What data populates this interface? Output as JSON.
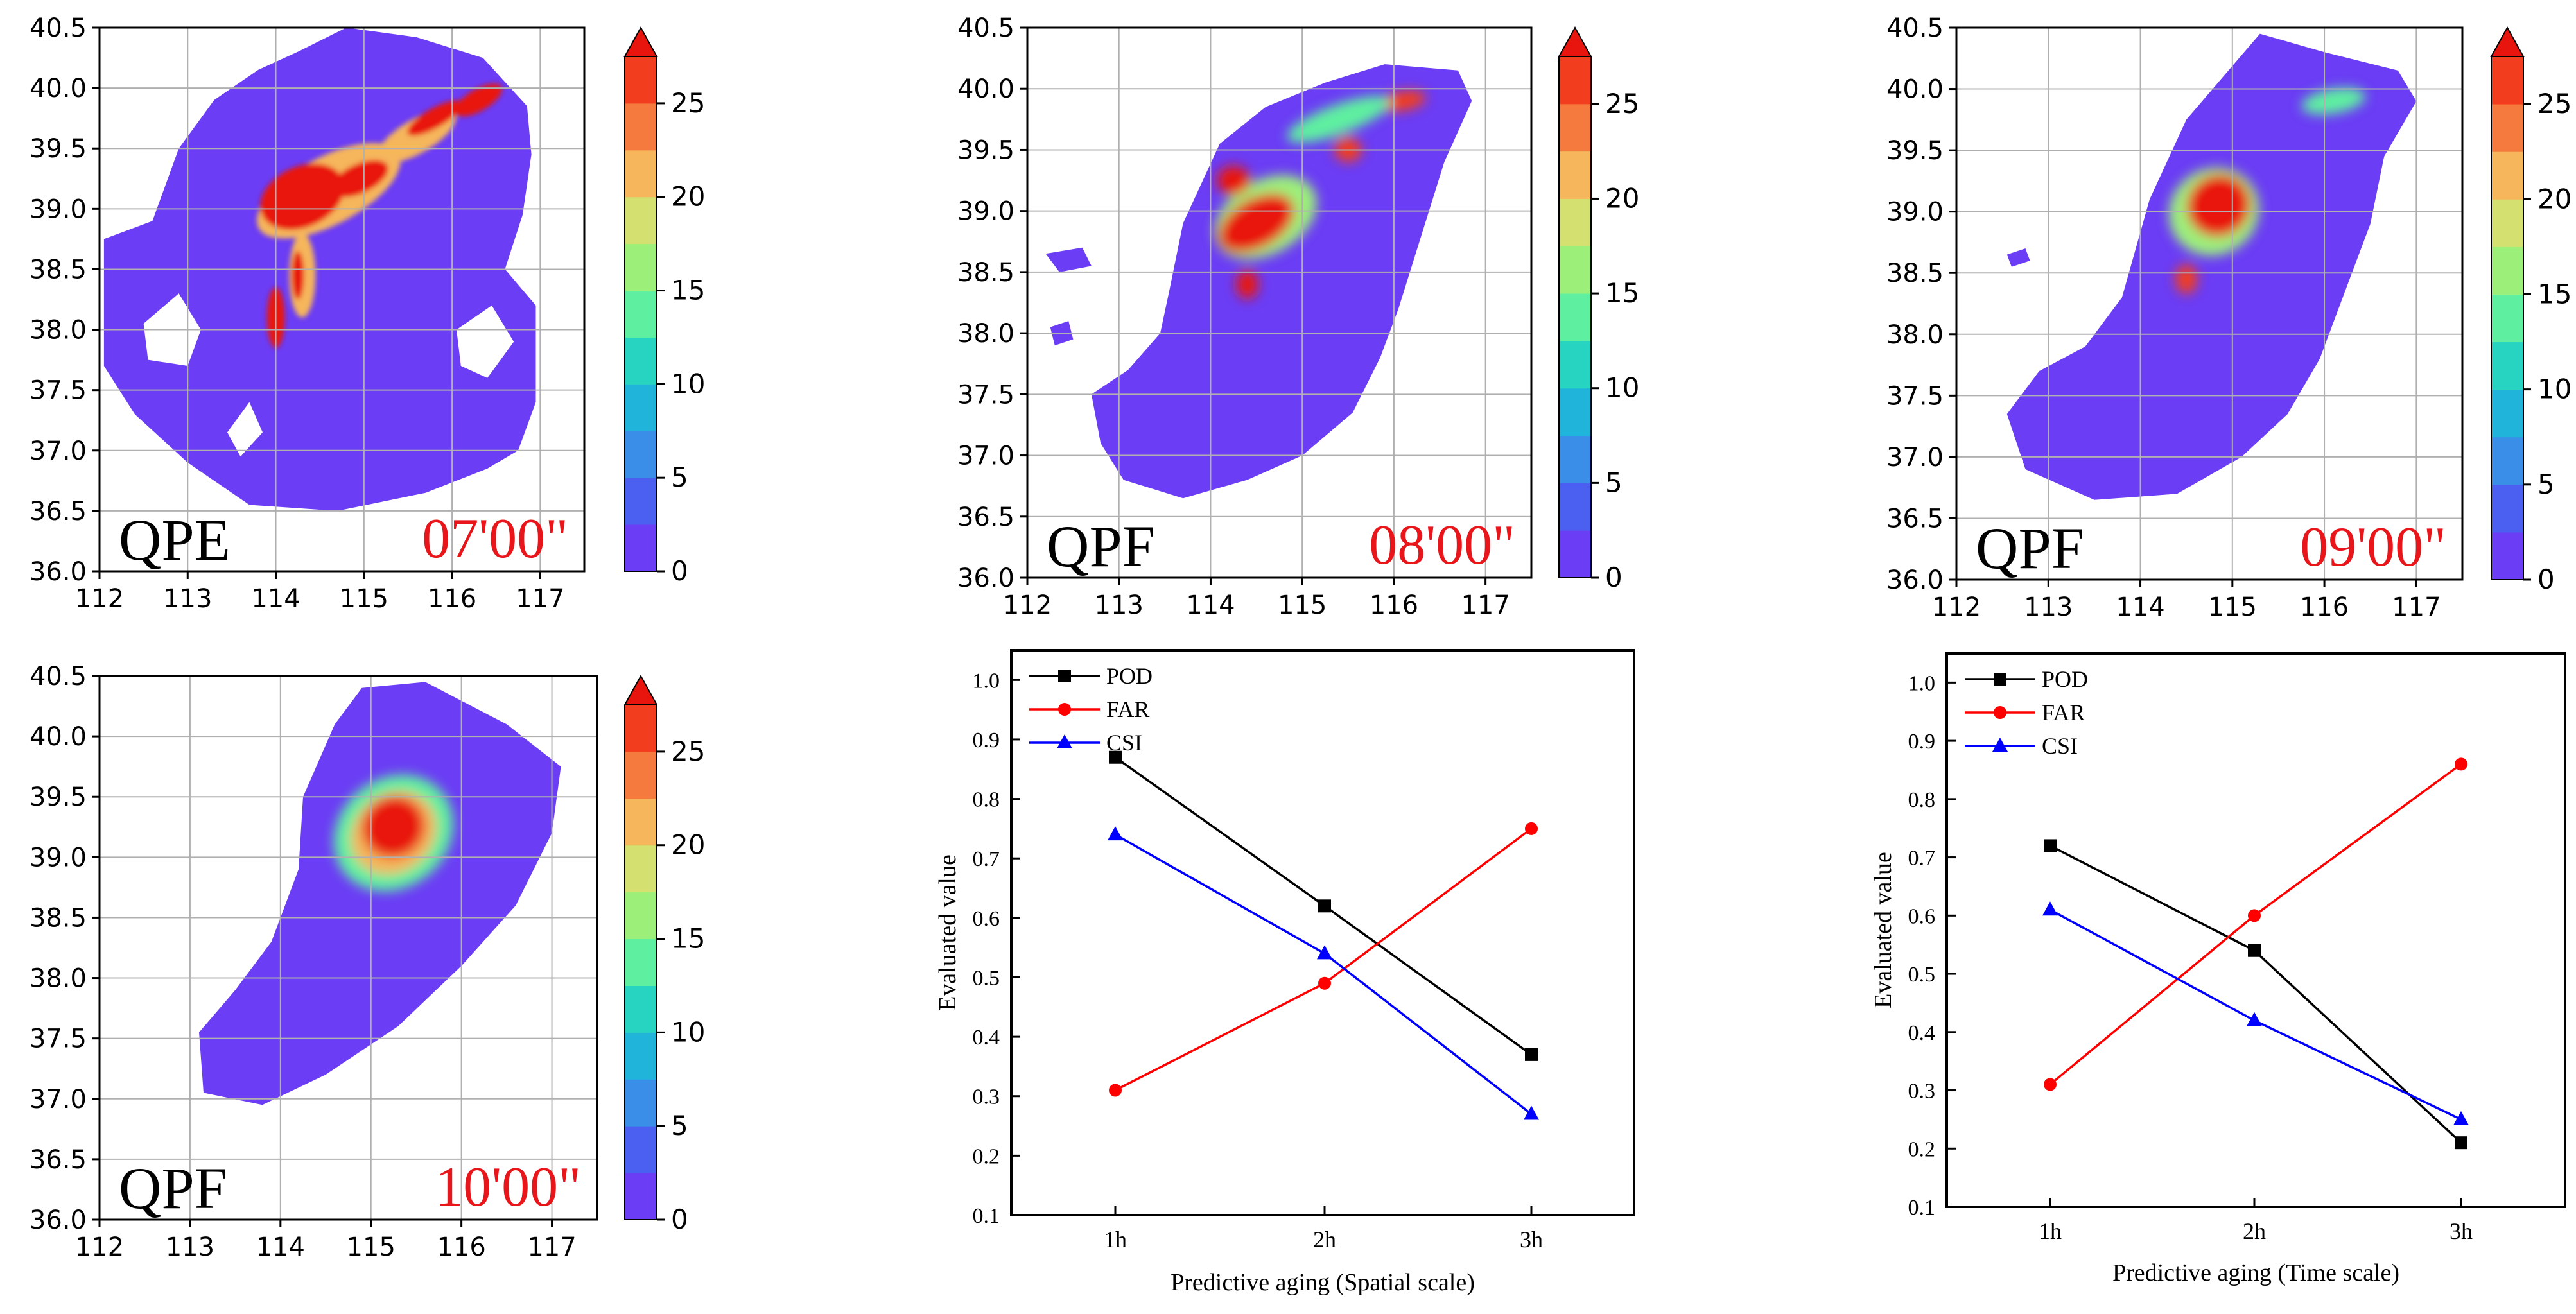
{
  "colorbar": {
    "tick_labels": [
      "0",
      "5",
      "10",
      "15",
      "20",
      "25"
    ],
    "levels": [
      0,
      2.5,
      5,
      7.5,
      10,
      12.5,
      15,
      17.5,
      20,
      22.5,
      25
    ],
    "colors": [
      "#6b3df5",
      "#4b5ff0",
      "#3a8ee8",
      "#21b4db",
      "#27d4c2",
      "#5ef0a0",
      "#9cf07a",
      "#d4e070",
      "#f5b65c",
      "#f57a3d",
      "#f23d1f",
      "#e8150f"
    ]
  },
  "maps": [
    {
      "panel_label": "QPE",
      "time_label": "07'00\"",
      "x_ticks": [
        "112",
        "113",
        "114",
        "115",
        "116",
        "117"
      ],
      "y_ticks": [
        "36.0",
        "36.5",
        "37.0",
        "37.5",
        "38.0",
        "38.5",
        "39.0",
        "39.5",
        "40.0",
        "40.5"
      ]
    },
    {
      "panel_label": "QPF",
      "time_label": "08'00\"",
      "x_ticks": [
        "112",
        "113",
        "114",
        "115",
        "116",
        "117"
      ],
      "y_ticks": [
        "36.0",
        "36.5",
        "37.0",
        "37.5",
        "38.0",
        "38.5",
        "39.0",
        "39.5",
        "40.0",
        "40.5"
      ]
    },
    {
      "panel_label": "QPF",
      "time_label": "09'00\"",
      "x_ticks": [
        "112",
        "113",
        "114",
        "115",
        "116",
        "117"
      ],
      "y_ticks": [
        "36.0",
        "36.5",
        "37.0",
        "37.5",
        "38.0",
        "38.5",
        "39.0",
        "39.5",
        "40.0",
        "40.5"
      ]
    },
    {
      "panel_label": "QPF",
      "time_label": "10'00\"",
      "x_ticks": [
        "112",
        "113",
        "114",
        "115",
        "116",
        "117"
      ],
      "y_ticks": [
        "36.0",
        "36.5",
        "37.0",
        "37.5",
        "38.0",
        "38.5",
        "39.0",
        "39.5",
        "40.0",
        "40.5"
      ]
    }
  ],
  "chart_data": [
    {
      "type": "line",
      "title": "",
      "xlabel": "Predictive aging (Spatial scale)",
      "ylabel": "Evaluated value",
      "categories": [
        "1h",
        "2h",
        "3h"
      ],
      "y_ticks": [
        "0.1",
        "0.2",
        "0.3",
        "0.4",
        "0.5",
        "0.6",
        "0.7",
        "0.8",
        "0.9",
        "1.0"
      ],
      "ylim": [
        0.1,
        1.05
      ],
      "legend_position": "top-left",
      "series": [
        {
          "name": "POD",
          "color": "#000000",
          "marker": "square",
          "values": [
            0.87,
            0.62,
            0.37
          ]
        },
        {
          "name": "FAR",
          "color": "#ff0000",
          "marker": "circle",
          "values": [
            0.31,
            0.49,
            0.75
          ]
        },
        {
          "name": "CSI",
          "color": "#0000ff",
          "marker": "triangle",
          "values": [
            0.74,
            0.54,
            0.27
          ]
        }
      ]
    },
    {
      "type": "line",
      "title": "",
      "xlabel": "Predictive aging (Time scale)",
      "ylabel": "Evaluated value",
      "categories": [
        "1h",
        "2h",
        "3h"
      ],
      "y_ticks": [
        "0.1",
        "0.2",
        "0.3",
        "0.4",
        "0.5",
        "0.6",
        "0.7",
        "0.8",
        "0.9",
        "1.0"
      ],
      "ylim": [
        0.1,
        1.05
      ],
      "legend_position": "top-left",
      "series": [
        {
          "name": "POD",
          "color": "#000000",
          "marker": "square",
          "values": [
            0.72,
            0.54,
            0.21
          ]
        },
        {
          "name": "FAR",
          "color": "#ff0000",
          "marker": "circle",
          "values": [
            0.31,
            0.6,
            0.86
          ]
        },
        {
          "name": "CSI",
          "color": "#0000ff",
          "marker": "triangle",
          "values": [
            0.61,
            0.42,
            0.25
          ]
        }
      ]
    }
  ]
}
